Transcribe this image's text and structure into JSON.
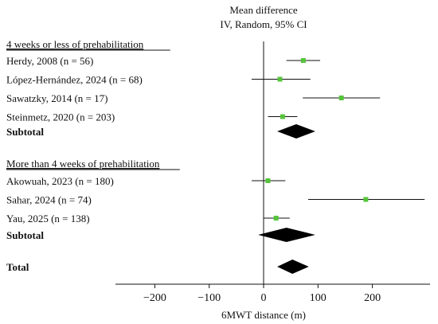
{
  "chart_data": {
    "type": "forest",
    "header": {
      "line1": "Mean difference",
      "line2": "IV, Random, 95% CI"
    },
    "xlabel": "6MWT distance (m)",
    "xlim": [
      -270,
      310
    ],
    "xticks": [
      -200,
      -100,
      0,
      100,
      200
    ],
    "tick_labels": [
      "−200",
      "−100",
      "0",
      "100",
      "200"
    ],
    "reference_value": 0,
    "groups": [
      {
        "title": "4 weeks or less of prehabilitation",
        "studies": [
          {
            "label": "Herdy, 2008 (n = 56)",
            "estimate": 73,
            "ci_low": 42,
            "ci_high": 104
          },
          {
            "label": "López-Hernández, 2024 (n = 68)",
            "estimate": 30,
            "ci_low": -22,
            "ci_high": 86
          },
          {
            "label": "Sawatzky, 2014 (n = 17)",
            "estimate": 143,
            "ci_low": 72,
            "ci_high": 214
          },
          {
            "label": "Steinmetz, 2020 (n = 203)",
            "estimate": 35,
            "ci_low": 8,
            "ci_high": 62
          }
        ],
        "subtotal": {
          "label": "Subtotal",
          "estimate": 60,
          "ci_low": 25,
          "ci_high": 95
        }
      },
      {
        "title": "More than 4 weeks of prehabilitation",
        "studies": [
          {
            "label": "Akowuah, 2023 (n = 180)",
            "estimate": 8,
            "ci_low": -22,
            "ci_high": 40
          },
          {
            "label": "Sahar, 2024 (n = 74)",
            "estimate": 188,
            "ci_low": 82,
            "ci_high": 296
          },
          {
            "label": "Yau, 2025 (n = 138)",
            "estimate": 23,
            "ci_low": 0,
            "ci_high": 48
          }
        ],
        "subtotal": {
          "label": "Subtotal",
          "estimate": 42,
          "ci_low": -10,
          "ci_high": 95
        }
      }
    ],
    "total": {
      "label": "Total",
      "estimate": 53,
      "ci_low": 25,
      "ci_high": 83
    },
    "colors": {
      "point": "#55c43a",
      "line": "#111111",
      "diamond": "#000000"
    }
  }
}
